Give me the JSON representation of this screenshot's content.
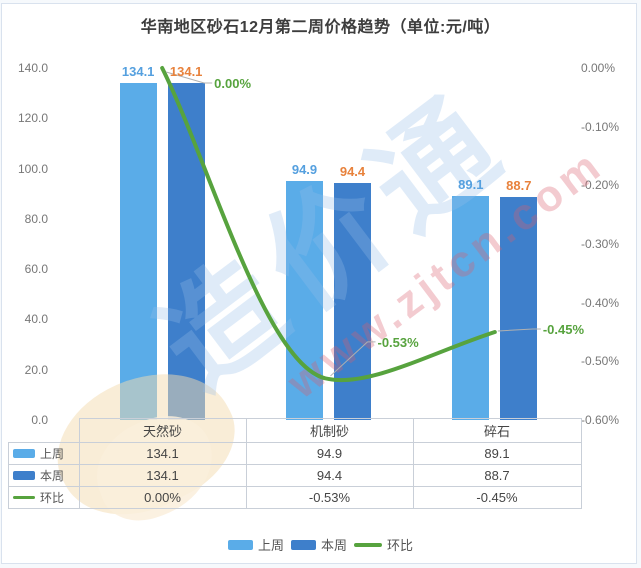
{
  "title": "华南地区砂石12月第二周价格趋势（单位:元/吨）",
  "chart_data": {
    "type": "bar",
    "subtype": "grouped-bars-with-line-combo",
    "categories": [
      "天然砂",
      "机制砂",
      "碎石"
    ],
    "series": [
      {
        "name": "上周",
        "type": "bar",
        "values": [
          134.1,
          94.9,
          89.1
        ],
        "labels": [
          "134.1",
          "94.9",
          "89.1"
        ]
      },
      {
        "name": "本周",
        "type": "bar",
        "values": [
          134.1,
          94.4,
          88.7
        ],
        "labels": [
          "134.1",
          "94.4",
          "88.7"
        ]
      },
      {
        "name": "环比",
        "type": "line",
        "values_pct": [
          0.0,
          -0.53,
          -0.45
        ],
        "labels": [
          "0.00%",
          "-0.53%",
          "-0.45%"
        ]
      }
    ],
    "left_axis": {
      "min": 0,
      "max": 140,
      "step": 20,
      "ticks": [
        "140.0",
        "120.0",
        "100.0",
        "80.0",
        "60.0",
        "40.0",
        "20.0",
        "0.0"
      ]
    },
    "right_axis": {
      "min": -0.6,
      "max": 0,
      "step": -0.1,
      "ticks": [
        "0.00%",
        "-0.10%",
        "-0.20%",
        "-0.30%",
        "-0.40%",
        "-0.50%",
        "-0.60%"
      ]
    },
    "grid": false,
    "legend_position": "bottom"
  },
  "table": {
    "col_headers": [
      "天然砂",
      "机制砂",
      "碎石"
    ],
    "rows": [
      {
        "label": "上周",
        "swatch": "bar-light",
        "values": [
          "134.1",
          "94.9",
          "89.1"
        ]
      },
      {
        "label": "本周",
        "swatch": "bar-dark",
        "values": [
          "134.1",
          "94.4",
          "88.7"
        ]
      },
      {
        "label": "环比",
        "swatch": "line-green",
        "values": [
          "0.00%",
          "-0.53%",
          "-0.45%"
        ]
      }
    ]
  },
  "legend": [
    {
      "label": "上周",
      "swatch": "bar-light"
    },
    {
      "label": "本周",
      "swatch": "bar-dark"
    },
    {
      "label": "环比",
      "swatch": "line-green"
    }
  ],
  "watermark": {
    "cn": "造价通",
    "en": "www.zjtcn.com"
  },
  "colors": {
    "bar_light": "#5aace8",
    "bar_dark": "#3e7fcb",
    "line_green": "#57a33e",
    "label_blue": "#55a0df",
    "label_orange": "#e8823c",
    "axis_text": "#777777",
    "leader_line": "#b0b0b0"
  }
}
